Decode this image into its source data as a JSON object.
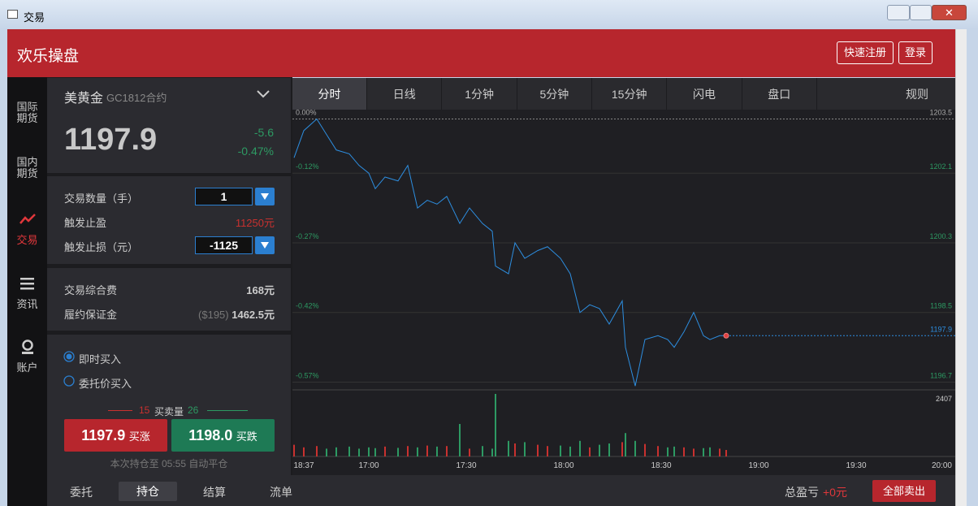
{
  "window": {
    "title": "交易"
  },
  "header": {
    "brand": "欢乐操盘",
    "buttons": [
      "快速注册",
      "登录"
    ]
  },
  "nav": [
    "国际期货",
    "国内期货",
    "交易",
    "资讯",
    "账户"
  ],
  "product": {
    "name": "美黄金",
    "code": "GC1812合约",
    "price": "1197.9",
    "change": "-5.6",
    "change_pct": "-0.47%"
  },
  "form": {
    "quantity_label": "交易数量（手）",
    "quantity": "1",
    "take_profit_label": "触发止盈",
    "take_profit": "11250元",
    "stop_loss_label": "触发止损（元）",
    "stop_loss": "-1125"
  },
  "fees": {
    "fee_label": "交易综合费",
    "fee": "168元",
    "margin_label": "履约保证金",
    "margin_usd": "($195)",
    "margin": "1462.5元"
  },
  "order_types": [
    "即时买入",
    "委托价买入"
  ],
  "depth": {
    "buy": "15",
    "label": "买卖量",
    "sell": "26"
  },
  "actions": [
    {
      "price": "1197.9",
      "label": "买涨"
    },
    {
      "price": "1198.0",
      "label": "买跌"
    }
  ],
  "note": "本次持仓至 05:55 自动平仓",
  "tabs": [
    "分时",
    "日线",
    "1分钟",
    "5分钟",
    "15分钟",
    "闪电",
    "盘口",
    "规则"
  ],
  "bottom": {
    "tabs": [
      "委托",
      "持仓",
      "结算",
      "流单"
    ],
    "pnl_label": "总盈亏",
    "pnl": "+0元",
    "sell_all": "全部卖出"
  },
  "chart_data": {
    "type": "line",
    "x": [
      0,
      3,
      7,
      10,
      13,
      17,
      20,
      23,
      25,
      28,
      32,
      35,
      38,
      41,
      44,
      47,
      51,
      54,
      58,
      61,
      62,
      66,
      68,
      71,
      75,
      78,
      82,
      85,
      88,
      91,
      94,
      97,
      101,
      102,
      105,
      108,
      112,
      115,
      117,
      120,
      123,
      126,
      128,
      131,
      133
    ],
    "series": [
      {
        "color": "#2d8ee0",
        "values": [
          1202.5,
          1203.2,
          1203.5,
          1203.1,
          1202.7,
          1202.6,
          1202.3,
          1202.1,
          1201.7,
          1202.0,
          1201.9,
          1202.3,
          1201.2,
          1201.4,
          1201.3,
          1201.5,
          1200.8,
          1201.2,
          1200.8,
          1200.6,
          1199.7,
          1199.5,
          1200.3,
          1199.9,
          1200.1,
          1200.2,
          1199.9,
          1199.5,
          1198.5,
          1198.7,
          1198.6,
          1198.2,
          1198.8,
          1197.6,
          1196.6,
          1197.8,
          1197.9,
          1197.8,
          1197.6,
          1198.0,
          1198.5,
          1197.9,
          1197.8,
          1197.9,
          1197.9
        ]
      },
      {
        "type": "bar",
        "axis": "y2",
        "up_color": "#c9312f",
        "down_color": "#2d9a63",
        "values": [
          450,
          350,
          400,
          300,
          350,
          380,
          300,
          350,
          320,
          380,
          330,
          400,
          350,
          420,
          380,
          400,
          1250,
          300,
          400,
          300,
          2407,
          600,
          500,
          550,
          450,
          400,
          420,
          380,
          600,
          350,
          450,
          500,
          550,
          900,
          600,
          480,
          400,
          350,
          380,
          350,
          300,
          320,
          350,
          300,
          250
        ]
      }
    ],
    "xlim": [
      0,
      203
    ],
    "xticks": [
      {
        "value": 3,
        "label": "18:37"
      },
      {
        "value": 23,
        "label": "17:00"
      },
      {
        "value": 53,
        "label": "17:30"
      },
      {
        "value": 83,
        "label": "18:00"
      },
      {
        "value": 113,
        "label": "18:30"
      },
      {
        "value": 143,
        "label": "19:00"
      },
      {
        "value": 173,
        "label": "19:30"
      },
      {
        "value": 203,
        "label": "20:00"
      }
    ],
    "ylim": [
      1196.5,
      1203.7
    ],
    "yticks": [
      1203.5,
      1202.1,
      1200.3,
      1198.5,
      1196.7
    ],
    "ytick_pct_labels": [
      "0.00%",
      "-0.12%",
      "-0.27%",
      "-0.42%",
      "-0.57%"
    ],
    "y2lim": [
      0,
      2407
    ],
    "y2ticks": [
      2407
    ],
    "last_value": 1197.9
  }
}
